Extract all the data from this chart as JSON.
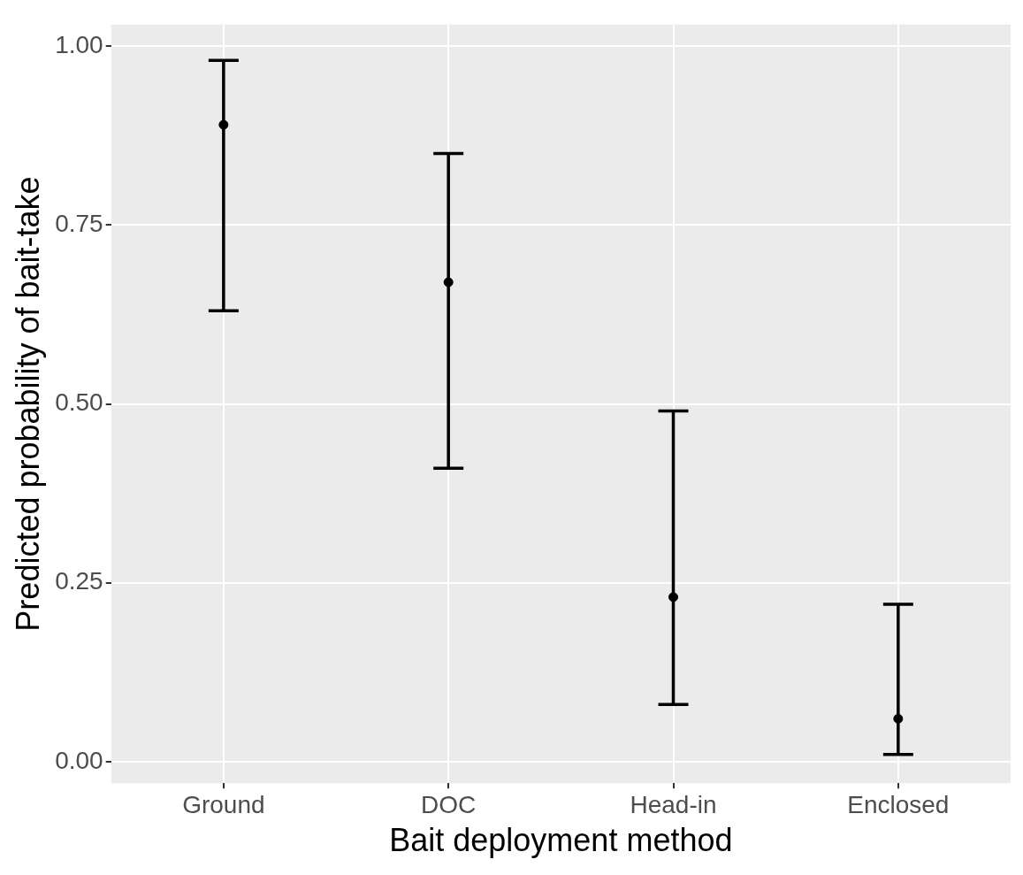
{
  "chart_data": {
    "type": "scatter",
    "xlabel": "Bait deployment method",
    "ylabel": "Predicted probability of bait-take",
    "categories": [
      "Ground",
      "DOC",
      "Head-in",
      "Enclosed"
    ],
    "series": [
      {
        "color": "#000000",
        "values": [
          0.89,
          0.67,
          0.23,
          0.06
        ],
        "errors": [
          [
            0.63,
            0.98
          ],
          [
            0.41,
            0.85
          ],
          [
            0.08,
            0.49
          ],
          [
            0.01,
            0.22
          ]
        ]
      }
    ],
    "ylim": [
      -0.03,
      1.03
    ],
    "yticks": [
      {
        "value": 0,
        "label": "0.00"
      },
      {
        "value": 0.25,
        "label": "0.25"
      },
      {
        "value": 0.5,
        "label": "0.50"
      },
      {
        "value": 0.75,
        "label": "0.75"
      },
      {
        "value": 1,
        "label": "1.00"
      }
    ],
    "grid": true,
    "marker": "circle",
    "legend": false
  }
}
